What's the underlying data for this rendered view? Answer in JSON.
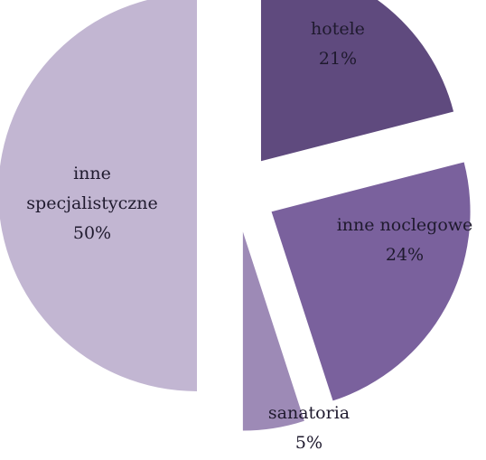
{
  "chart_data": {
    "type": "pie",
    "title": "",
    "slices": [
      {
        "name": "hotele",
        "name_lines": [
          "hotele"
        ],
        "value": 21,
        "value_label": "21%",
        "color": "#5f4a7e"
      },
      {
        "name": "inne noclegowe",
        "name_lines": [
          "inne noclegowe"
        ],
        "value": 24,
        "value_label": "24%",
        "color": "#7a619d"
      },
      {
        "name": "sanatoria",
        "name_lines": [
          "sanatoria"
        ],
        "value": 5,
        "value_label": "5%",
        "color": "#9d8ab6"
      },
      {
        "name": "inne specjalistyczne",
        "name_lines": [
          "inne",
          "specjalistyczne"
        ],
        "value": 50,
        "value_label": "50%",
        "color": "#c2b6d2"
      }
    ],
    "legend": "none",
    "exploded": true
  }
}
